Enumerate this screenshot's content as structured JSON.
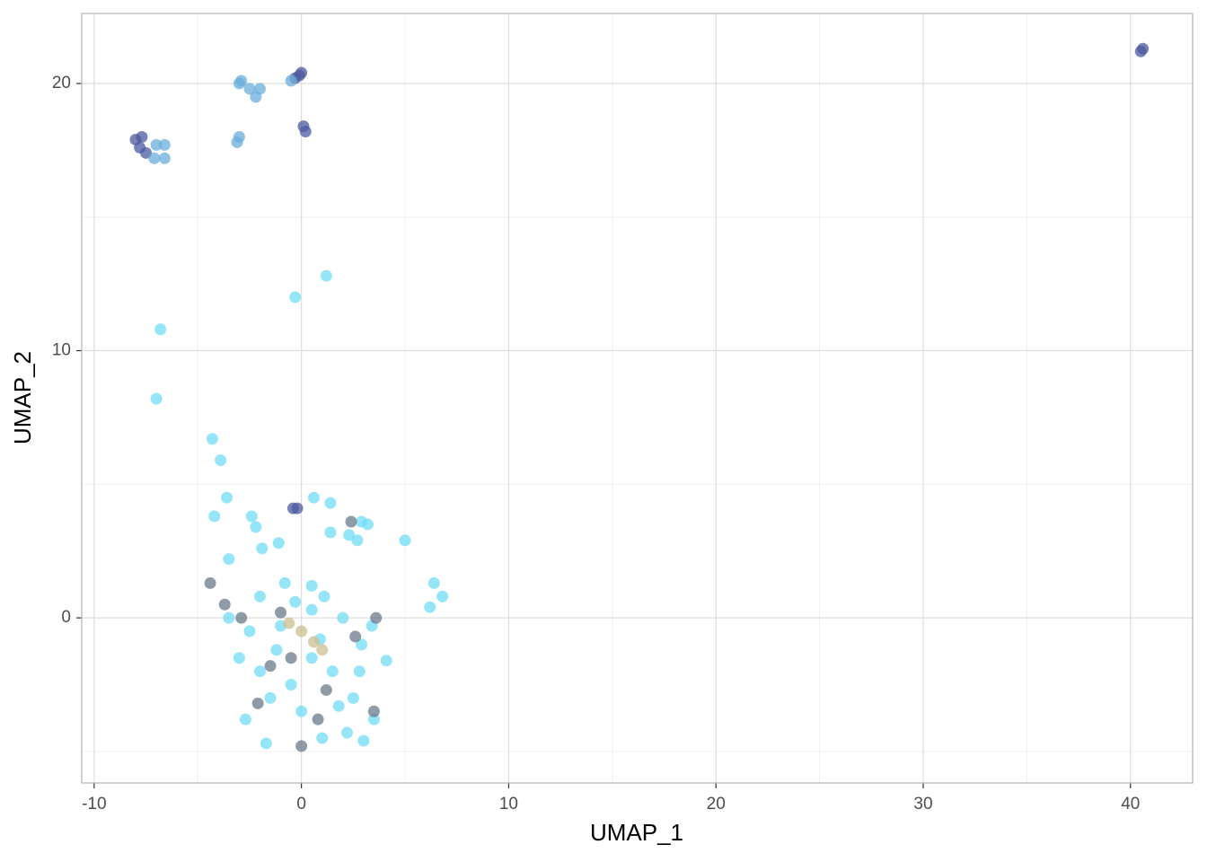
{
  "chart_data": {
    "type": "scatter",
    "x_label": "UMAP_1",
    "y_label": "UMAP_2",
    "xlim": [
      -10.6,
      43.0
    ],
    "ylim": [
      -6.18,
      22.62
    ],
    "xticks": [
      -10,
      0,
      10,
      20,
      30,
      40
    ],
    "yticks": [
      0,
      10,
      20
    ],
    "grid": true,
    "minor_grid": true,
    "series": [
      {
        "color": "#4b5aa0",
        "x": [
          -8,
          -7.7,
          -7.5,
          -7.8,
          -0.3,
          -0.1,
          0,
          0.1,
          0.2,
          40.5,
          40.6,
          -0.4,
          -0.2
        ],
        "y": [
          17.9,
          18,
          17.4,
          17.6,
          20.2,
          20.3,
          20.4,
          18.4,
          18.2,
          21.2,
          21.3,
          4.1,
          4.1
        ]
      },
      {
        "color": "#6aaedc",
        "x": [
          -7,
          -6.6,
          -6.6,
          -7.1,
          -3,
          -2.9,
          -2.5,
          -2.2,
          -2,
          -3.1,
          -3,
          -0.5
        ],
        "y": [
          17.7,
          17.7,
          17.2,
          17.2,
          20,
          20.1,
          19.8,
          19.5,
          19.8,
          17.8,
          18,
          20.1
        ]
      },
      {
        "color": "#72dcf7",
        "x": [
          1.2,
          -0.3,
          -6.8,
          -7,
          -4.3,
          -3.9,
          -3.6,
          -4.2,
          -3.5,
          -2.4,
          -2.2,
          -1.9,
          -1.1,
          0.6,
          1.4,
          1.4,
          2.3,
          2.9,
          3.2,
          2.7,
          5,
          6.2,
          6.8,
          6.4,
          -0.8,
          0.5,
          1.1,
          -3.5,
          -3,
          -2,
          -1.5,
          -0.5,
          0.5,
          1.5,
          2.5,
          3,
          1,
          -1.7,
          -2.5,
          -1,
          0.5,
          2,
          2.9,
          3.4,
          4.1,
          -2.7,
          0,
          2.2,
          -1.2,
          0.9,
          1.8,
          -0.3,
          -2,
          2.8,
          3.5
        ],
        "y": [
          12.8,
          12,
          10.8,
          8.2,
          6.7,
          5.9,
          4.5,
          3.8,
          2.2,
          3.8,
          3.4,
          2.6,
          2.8,
          4.5,
          4.3,
          3.2,
          3.1,
          3.6,
          3.5,
          2.9,
          2.9,
          0.4,
          0.8,
          1.3,
          1.3,
          1.2,
          0.8,
          0,
          -1.5,
          -2,
          -3,
          -2.5,
          -1.5,
          -2,
          -3,
          -4.6,
          -4.5,
          -4.7,
          -0.5,
          -0.3,
          0.3,
          0,
          -1,
          -0.3,
          -1.6,
          -3.8,
          -3.5,
          -4.3,
          -1.2,
          -0.8,
          -3.3,
          0.6,
          0.8,
          -2,
          -3.8
        ]
      },
      {
        "color": "#6a7a8a",
        "x": [
          -4.4,
          -3.7,
          -2.9,
          -1.5,
          -2.1,
          0,
          1.2,
          3.5,
          2.6,
          -0.5,
          0.8,
          -1,
          2.4,
          3.6
        ],
        "y": [
          1.3,
          0.5,
          0,
          -1.8,
          -3.2,
          -4.8,
          -2.7,
          -3.5,
          -0.7,
          -1.5,
          -3.8,
          0.2,
          3.6,
          0
        ]
      },
      {
        "color": "#cdbf8f",
        "x": [
          0,
          0.6,
          -0.6,
          1
        ],
        "y": [
          -0.5,
          -0.9,
          -0.2,
          -1.2
        ]
      }
    ]
  }
}
